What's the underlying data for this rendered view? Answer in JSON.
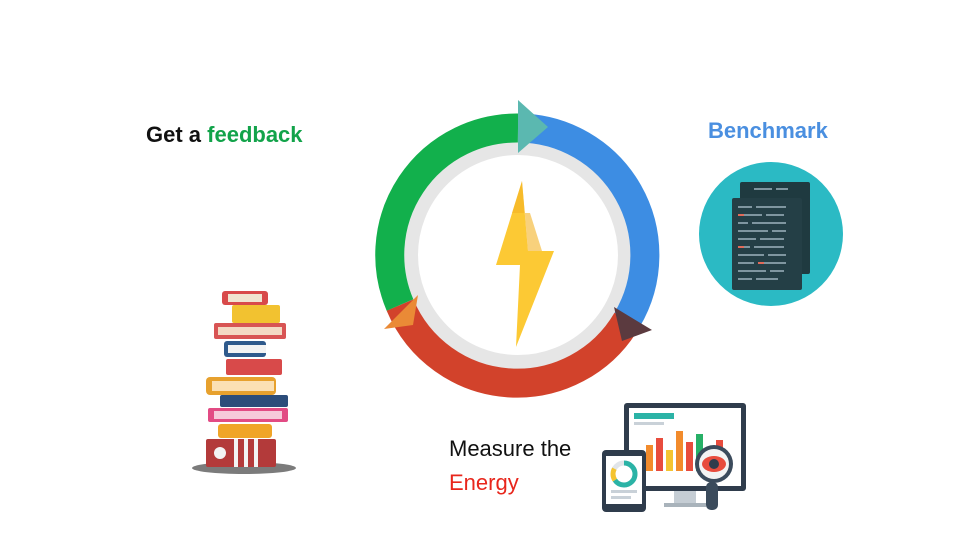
{
  "labels": {
    "feedback_prefix": "Get a ",
    "feedback_word": "feedback",
    "benchmark": "Benchmark",
    "measure_line1": "Measure the",
    "measure_word": "Energy"
  },
  "colors": {
    "green": "#12b04c",
    "blue": "#3d8de3",
    "red": "#d2422b",
    "teal_arrow": "#5bb8b0",
    "dark_arrow": "#5b3a3f",
    "orange_arrow": "#ea8a36",
    "inner_ring": "#e6e6e6",
    "bolt_yellow": "#fcc934",
    "bolt_orange": "#f4b324",
    "feedback_text": "#12a34a",
    "benchmark_text": "#4a8fe0",
    "energy_text": "#e8261c",
    "benchmark_circle": "#2bbac4"
  },
  "icons": {
    "center": "lightning-bolt-icon",
    "benchmark": "code-documents-icon",
    "feedback": "book-stack-icon",
    "measure": "analytics-dashboard-icon"
  }
}
